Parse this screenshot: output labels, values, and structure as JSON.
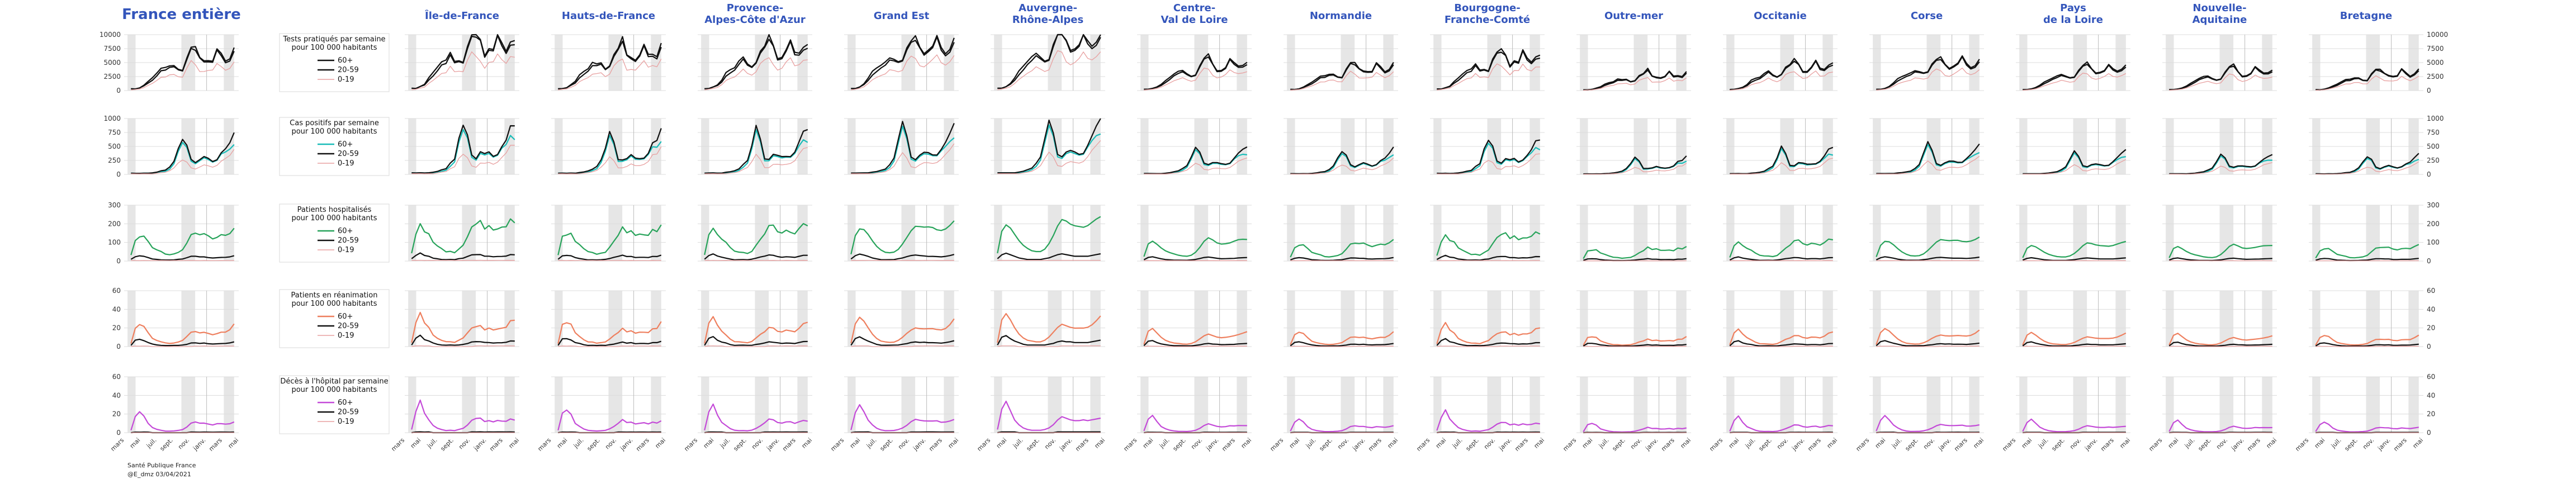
{
  "figure": {
    "source": "Santé Publique France",
    "credit": "@E_dmz 03/04/2021"
  },
  "chart_data": {
    "type": "line",
    "x_ticks": [
      "mars",
      "mai",
      "juil.",
      "sept.",
      "nov.",
      "janv.",
      "mars",
      "mai"
    ],
    "series_names": [
      "60+",
      "20-59",
      "0-19"
    ],
    "colors": {
      "20-59": "#111111",
      "0-19": "#e8a0a0",
      "title": "#3355bb",
      "shade": "#e6e6e6"
    },
    "shaded_periods": [
      [
        0.03,
        0.1
      ],
      [
        0.5,
        0.62
      ],
      [
        0.87,
        0.96
      ]
    ],
    "marker": 0.72,
    "grid": true,
    "columns": [
      {
        "label": "France entière",
        "scale": 1.0
      },
      {
        "label": "Île-de-France",
        "scale": 1.35
      },
      {
        "label": "Hauts-de-France",
        "scale": 1.1
      },
      {
        "label": "Provence-\nAlpes-Côte d'Azur",
        "scale": 1.2
      },
      {
        "label": "Grand Est",
        "scale": 1.3
      },
      {
        "label": "Auvergne-\nRhône-Alpes",
        "scale": 1.4
      },
      {
        "label": "Centre-\nVal de Loire",
        "scale": 0.75
      },
      {
        "label": "Normandie",
        "scale": 0.65
      },
      {
        "label": "Bourgogne-\nFranche-Comté",
        "scale": 0.95
      },
      {
        "label": "Outre-mer",
        "scale": 0.45
      },
      {
        "label": "Occitanie",
        "scale": 0.7
      },
      {
        "label": "Corse",
        "scale": 0.8
      },
      {
        "label": "Pays\nde la Loire",
        "scale": 0.6
      },
      {
        "label": "Nouvelle-\nAquitaine",
        "scale": 0.55
      },
      {
        "label": "Bretagne",
        "scale": 0.5
      }
    ],
    "rows": [
      {
        "title": "Tests pratiqués par semaine\npour 100 000 habitants",
        "color": "#111111",
        "ylim": [
          0,
          10000
        ],
        "yticks": [
          "0",
          "2500",
          "5000",
          "7500",
          "10000"
        ],
        "values_60": [
          3,
          3,
          5,
          8,
          13,
          20,
          26,
          33,
          38,
          44,
          40,
          36,
          38,
          55,
          70,
          75,
          62,
          48,
          50,
          55,
          72,
          58,
          52,
          56,
          66
        ],
        "values_2059": [
          3,
          3,
          5,
          9,
          16,
          25,
          31,
          37,
          43,
          47,
          42,
          37,
          39,
          58,
          72,
          82,
          63,
          50,
          52,
          57,
          74,
          62,
          55,
          60,
          72
        ],
        "values_019": [
          1,
          2,
          3,
          5,
          9,
          14,
          18,
          22,
          25,
          30,
          27,
          24,
          26,
          40,
          50,
          48,
          36,
          32,
          35,
          40,
          48,
          40,
          38,
          42,
          48
        ]
      },
      {
        "title": "Cas positifs par semaine\npour 100 000 habitants",
        "color": "#19bcb8",
        "ylim": [
          0,
          1000
        ],
        "yticks": [
          "0",
          "250",
          "500",
          "750",
          "1000"
        ],
        "values_60": [
          2,
          2,
          2,
          2,
          2,
          2,
          3,
          4,
          6,
          10,
          18,
          40,
          62,
          48,
          22,
          20,
          26,
          28,
          26,
          24,
          25,
          34,
          42,
          48,
          50
        ],
        "values_2059": [
          2,
          2,
          2,
          2,
          2,
          3,
          4,
          6,
          8,
          14,
          22,
          45,
          68,
          52,
          25,
          22,
          28,
          30,
          28,
          25,
          26,
          36,
          48,
          60,
          70
        ],
        "values_019": [
          1,
          1,
          1,
          1,
          1,
          1,
          2,
          3,
          4,
          7,
          11,
          20,
          28,
          22,
          11,
          10,
          14,
          16,
          15,
          14,
          16,
          22,
          30,
          36,
          42
        ]
      },
      {
        "title": "Patients hospitalisés\npour 100 000 habitants",
        "color": "#27a35a",
        "ylim": [
          0,
          300
        ],
        "yticks": [
          "0",
          "100",
          "200",
          "300"
        ],
        "values_60": [
          10,
          38,
          46,
          42,
          34,
          26,
          20,
          16,
          13,
          12,
          12,
          15,
          22,
          32,
          44,
          52,
          50,
          46,
          44,
          43,
          42,
          44,
          48,
          52,
          55
        ],
        "values_2059": [
          3,
          8,
          10,
          8,
          6,
          4,
          3,
          2,
          2,
          2,
          2,
          3,
          4,
          6,
          8,
          9,
          8,
          7,
          6,
          6,
          6,
          6,
          7,
          8,
          9
        ],
        "values_019": [
          1,
          1,
          1,
          1,
          1,
          1,
          1,
          1,
          1,
          1,
          1,
          1,
          1,
          1,
          1,
          1,
          1,
          1,
          1,
          1,
          1,
          1,
          1,
          1,
          1
        ]
      },
      {
        "title": "Patients en réanimation\npour 100 000 habitants",
        "color": "#ee7f5e",
        "ylim": [
          0,
          60
        ],
        "yticks": [
          "0",
          "20",
          "40",
          "60"
        ],
        "values_60": [
          5,
          34,
          42,
          34,
          24,
          16,
          11,
          8,
          7,
          6,
          6,
          8,
          12,
          18,
          24,
          28,
          26,
          24,
          23,
          23,
          23,
          24,
          27,
          32,
          38
        ],
        "values_2059": [
          2,
          12,
          14,
          10,
          7,
          5,
          3,
          2,
          2,
          2,
          2,
          2,
          3,
          4,
          6,
          7,
          6,
          6,
          5,
          5,
          5,
          5,
          6,
          7,
          8
        ],
        "values_019": [
          0,
          1,
          1,
          1,
          1,
          0,
          0,
          0,
          0,
          0,
          0,
          0,
          0,
          0,
          0,
          1,
          1,
          1,
          1,
          1,
          1,
          1,
          1,
          1,
          1
        ]
      },
      {
        "title": "Décès à l'hôpital par semaine\npour 100 000 habitants",
        "color": "#c44ad8",
        "ylim": [
          0,
          60
        ],
        "yticks": [
          "0",
          "20",
          "40",
          "60"
        ],
        "values_60": [
          4,
          30,
          40,
          28,
          16,
          10,
          6,
          4,
          3,
          3,
          3,
          4,
          6,
          10,
          16,
          20,
          18,
          16,
          15,
          15,
          16,
          15,
          16,
          17,
          18
        ],
        "values_2059": [
          0,
          1,
          1,
          1,
          1,
          0,
          0,
          0,
          0,
          0,
          0,
          0,
          0,
          0,
          1,
          1,
          1,
          1,
          1,
          1,
          1,
          1,
          1,
          1,
          1
        ],
        "values_019": [
          0,
          0,
          0,
          0,
          0,
          0,
          0,
          0,
          0,
          0,
          0,
          0,
          0,
          0,
          0,
          0,
          0,
          0,
          0,
          0,
          0,
          0,
          0,
          0,
          0
        ]
      }
    ]
  }
}
